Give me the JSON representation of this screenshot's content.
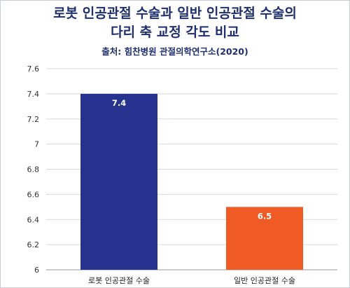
{
  "chart_data": {
    "type": "bar",
    "title_lines": [
      "로봇 인공관절 수술과 일반 인공관절 수술의",
      "다리 축 교정 각도 비교"
    ],
    "subtitle": "출처: 힘찬병원 관절의학연구소(2020)",
    "categories": [
      "로봇 인공관절 수술",
      "일반 인공관절 수술"
    ],
    "values": [
      7.4,
      6.5
    ],
    "data_labels": [
      "7.4",
      "6.5"
    ],
    "colors": [
      "#27328f",
      "#f05a24"
    ],
    "ylim": [
      6,
      7.6
    ],
    "yticks": [
      "6",
      "6.2",
      "6.4",
      "6.6",
      "6.8",
      "7",
      "7.2",
      "7.4",
      "7.6"
    ],
    "xlabel": "",
    "ylabel": "",
    "grid": true,
    "legend": "none"
  }
}
